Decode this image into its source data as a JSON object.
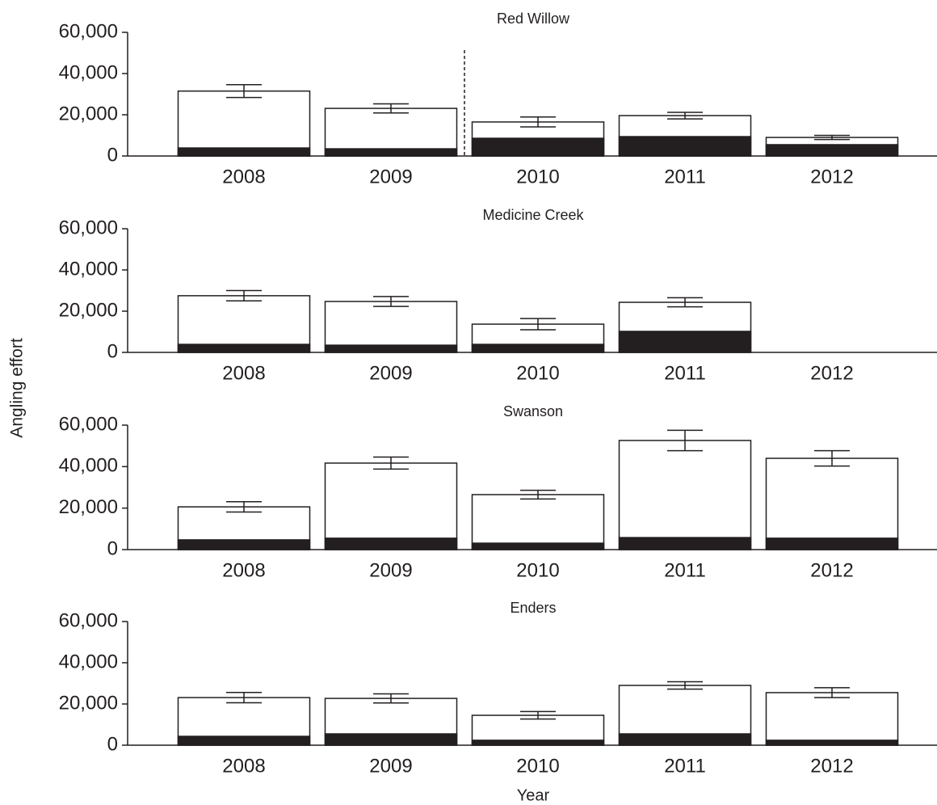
{
  "ylabel": "Angling effort",
  "xlabel": "Year",
  "chart_data": [
    {
      "type": "bar",
      "title": "Red Willow",
      "categories": [
        "2008",
        "2009",
        "2010",
        "2011",
        "2012"
      ],
      "series": [
        {
          "color": "#ffffff",
          "values": [
            31500,
            23100,
            16500,
            19600,
            9000
          ],
          "errors": [
            3100,
            2200,
            2400,
            1600,
            1000
          ]
        },
        {
          "color": "#231f20",
          "values": [
            3900,
            3500,
            8600,
            9400,
            5500
          ]
        }
      ],
      "ylim": [
        0,
        60000
      ],
      "yticks": [
        0,
        {
          "value": 20000,
          "label": "20,000"
        },
        {
          "value": 40000,
          "label": "40,000"
        },
        {
          "value": 60000,
          "label": "60,000"
        }
      ]
    },
    {
      "type": "bar",
      "title": "Medicine Creek",
      "categories": [
        "2008",
        "2009",
        "2010",
        "2011",
        "2012"
      ],
      "series": [
        {
          "color": "#ffffff",
          "values": [
            27500,
            24700,
            13700,
            24300,
            null
          ],
          "errors": [
            2500,
            2400,
            2700,
            2200,
            null
          ]
        },
        {
          "color": "#231f20",
          "values": [
            3900,
            3500,
            3900,
            10200,
            null
          ]
        }
      ],
      "ylim": [
        0,
        60000
      ],
      "yticks": [
        0,
        {
          "value": 20000,
          "label": "20,000"
        },
        {
          "value": 40000,
          "label": "40,000"
        },
        {
          "value": 60000,
          "label": "60,000"
        }
      ]
    },
    {
      "type": "bar",
      "title": "Swanson",
      "categories": [
        "2008",
        "2009",
        "2010",
        "2011",
        "2012"
      ],
      "series": [
        {
          "color": "#ffffff",
          "values": [
            20600,
            41700,
            26500,
            52600,
            44000
          ],
          "errors": [
            2500,
            2900,
            2100,
            4900,
            3700
          ]
        },
        {
          "color": "#231f20",
          "values": [
            4700,
            5500,
            3100,
            5800,
            5500
          ]
        }
      ],
      "ylim": [
        0,
        60000
      ],
      "yticks": [
        0,
        {
          "value": 20000,
          "label": "20,000"
        },
        {
          "value": 40000,
          "label": "40,000"
        },
        {
          "value": 60000,
          "label": "60,000"
        }
      ]
    },
    {
      "type": "bar",
      "title": "Enders",
      "categories": [
        "2008",
        "2009",
        "2010",
        "2011",
        "2012"
      ],
      "series": [
        {
          "color": "#ffffff",
          "values": [
            23100,
            22700,
            14500,
            29000,
            25500
          ],
          "errors": [
            2500,
            2200,
            1800,
            1800,
            2400
          ]
        },
        {
          "color": "#231f20",
          "values": [
            4300,
            5500,
            2400,
            5500,
            2400
          ]
        }
      ],
      "ylim": [
        0,
        60000
      ],
      "yticks": [
        0,
        {
          "value": 20000,
          "label": "20,000"
        },
        {
          "value": 40000,
          "label": "40,000"
        },
        {
          "value": 60000,
          "label": "60,000"
        }
      ]
    }
  ]
}
